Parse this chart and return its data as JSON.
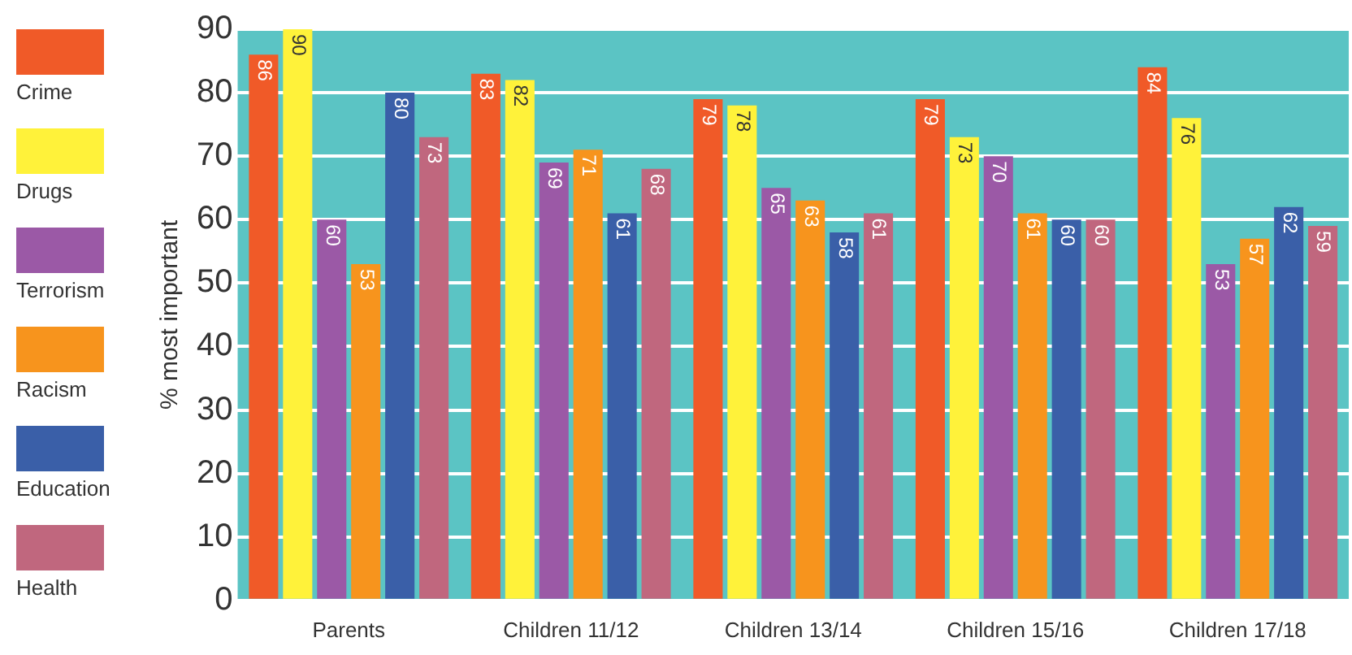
{
  "chart_data": {
    "type": "bar",
    "ylabel": "% most important",
    "categories": [
      "Parents",
      "Children 11/12",
      "Children 13/14",
      "Children 15/16",
      "Children 17/18"
    ],
    "series": [
      {
        "name": "Crime",
        "color": "#f05a28",
        "values": [
          86,
          83,
          79,
          79,
          84
        ]
      },
      {
        "name": "Drugs",
        "color": "#fff23a",
        "values": [
          90,
          82,
          78,
          73,
          76
        ]
      },
      {
        "name": "Terrorism",
        "color": "#9b59a6",
        "values": [
          60,
          69,
          65,
          70,
          53
        ]
      },
      {
        "name": "Racism",
        "color": "#f7941d",
        "values": [
          53,
          71,
          63,
          61,
          57
        ]
      },
      {
        "name": "Education",
        "color": "#3a5fa8",
        "values": [
          80,
          61,
          58,
          60,
          62
        ]
      },
      {
        "name": "Health",
        "color": "#c0677e",
        "values": [
          73,
          68,
          61,
          60,
          59
        ]
      }
    ],
    "ylim": [
      0,
      90
    ],
    "yticks": [
      0,
      10,
      20,
      30,
      40,
      50,
      60,
      70,
      80,
      90
    ],
    "grid": "y",
    "legend": "left",
    "data_labels": true
  }
}
